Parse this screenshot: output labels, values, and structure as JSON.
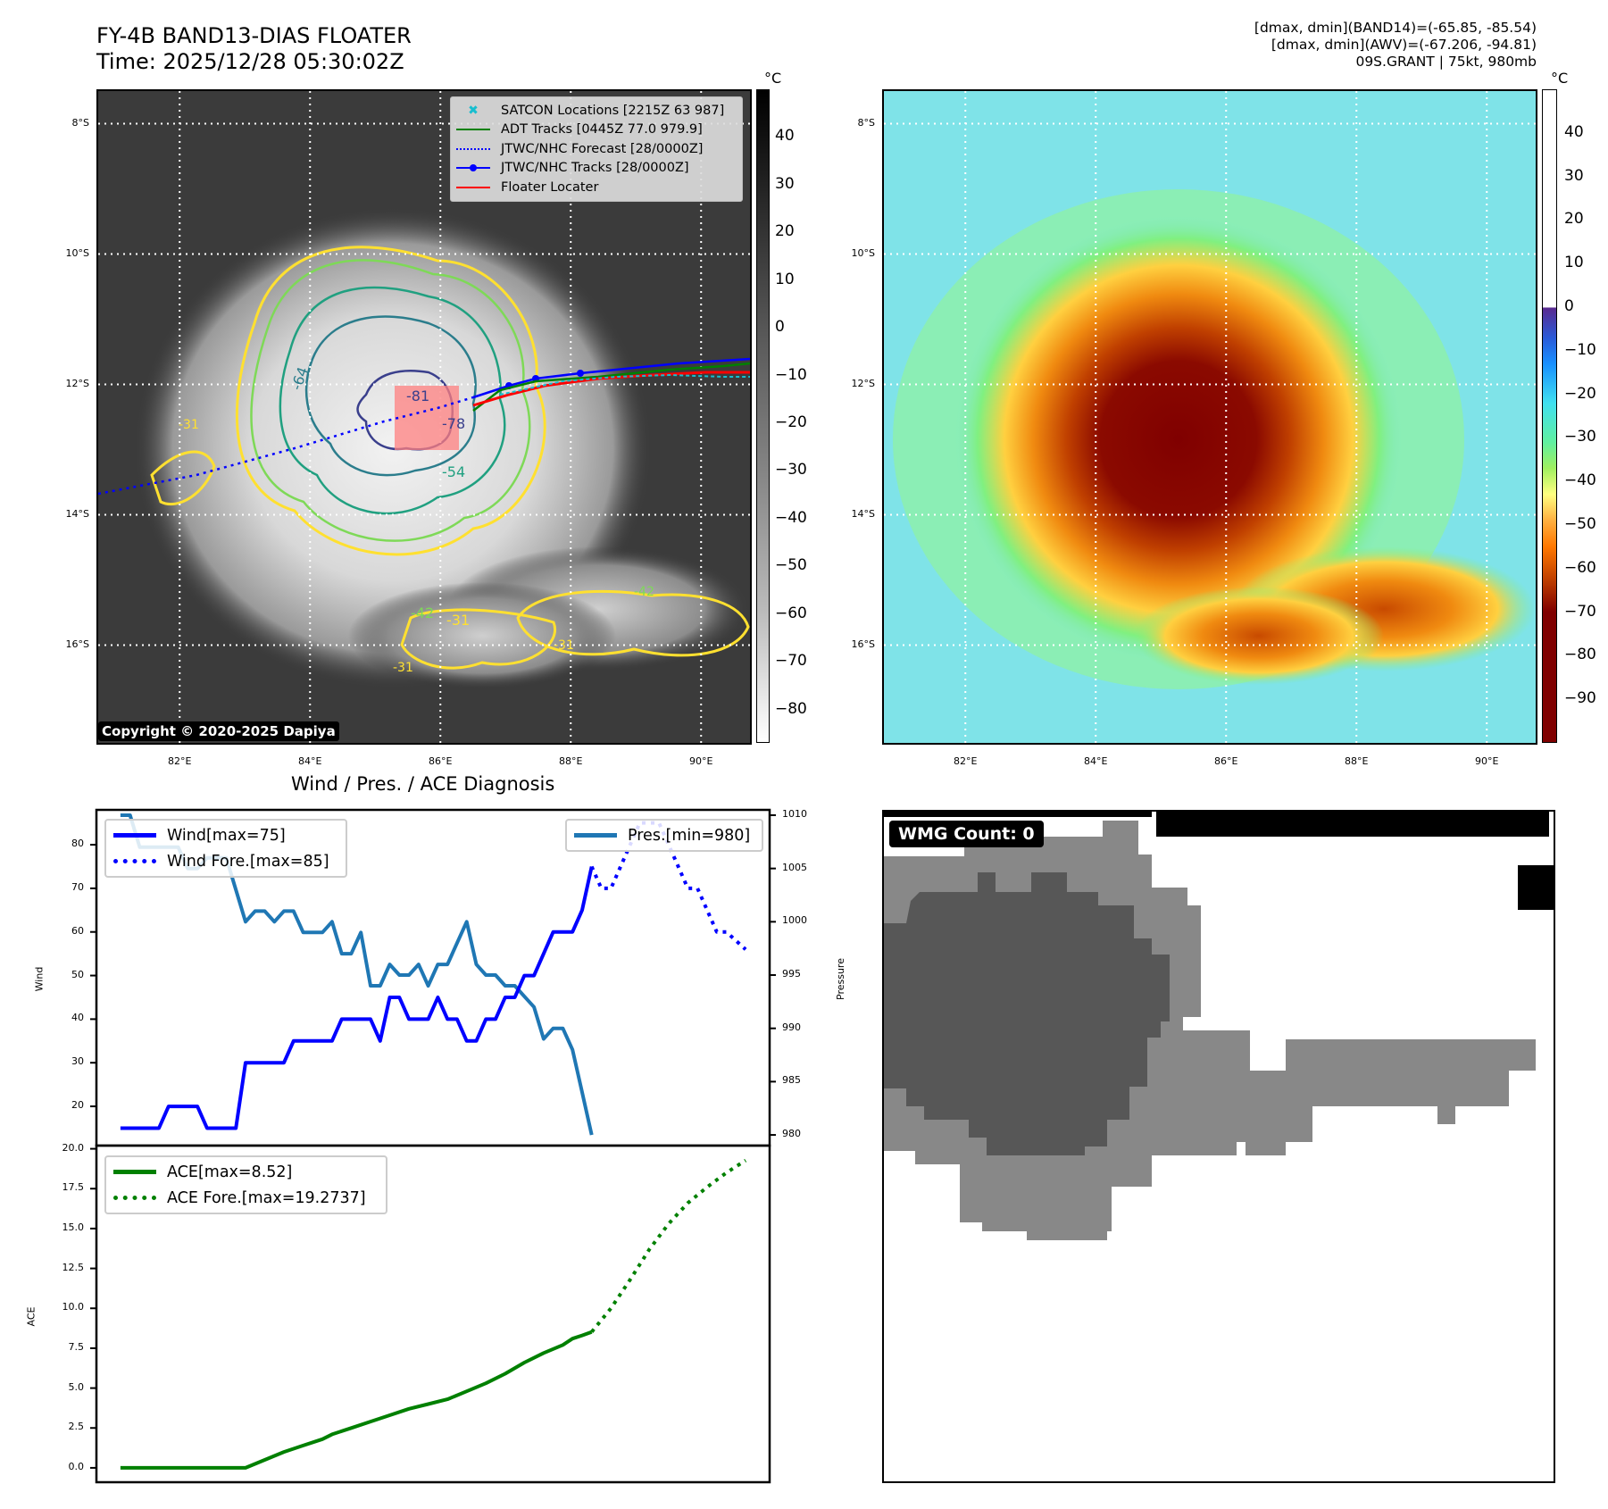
{
  "header": {
    "title_line1": "FY-4B BAND13-DIAS FLOATER",
    "title_line2": "Time: 2025/12/28 05:30:02Z",
    "info_line1": "[dmax, dmin](BAND14)=(-65.85, -85.54)",
    "info_line2": "[dmax, dmin](AWV)=(-67.206, -94.81)",
    "info_line3": "09S.GRANT | 75kt, 980mb"
  },
  "map_axes": {
    "lat_labels": [
      "8°S",
      "10°S",
      "12°S",
      "14°S",
      "16°S"
    ],
    "lon_labels": [
      "82°E",
      "84°E",
      "86°E",
      "88°E",
      "90°E"
    ],
    "lat_range": [
      -17.5,
      -7.5
    ],
    "lon_range": [
      80.75,
      90.75
    ]
  },
  "ir_map": {
    "colorbar_unit": "°C",
    "colorbar_ticks": [
      "40",
      "30",
      "20",
      "10",
      "0",
      "−10",
      "−20",
      "−30",
      "−40",
      "−50",
      "−60",
      "−70",
      "−80"
    ],
    "colorbar_range": [
      50,
      -87
    ],
    "copyright": "Copyright © 2020-2025 Dapiya",
    "contour_labels": [
      "-81",
      "-78",
      "-64",
      "-54",
      "-42",
      "-31",
      "-31",
      "-31",
      "-42",
      "-31"
    ],
    "legend": [
      {
        "label": "SATCON Locations [2215Z 63 987]",
        "color": "#17becf",
        "style": "x-marker"
      },
      {
        "label": "ADT Tracks [0445Z 77.0 979.9]",
        "color": "#008000",
        "style": "solid"
      },
      {
        "label": "JTWC/NHC Forecast [28/0000Z]",
        "color": "#0000ff",
        "style": "dotted"
      },
      {
        "label": "JTWC/NHC Tracks [28/0000Z]",
        "color": "#0000ff",
        "style": "solid-dot"
      },
      {
        "label": "Floater Locater",
        "color": "#ff0000",
        "style": "solid"
      }
    ]
  },
  "awv_map": {
    "colorbar_unit": "°C",
    "colorbar_ticks": [
      "40",
      "30",
      "20",
      "10",
      "0",
      "−10",
      "−20",
      "−30",
      "−40",
      "−50",
      "−60",
      "−70",
      "−80",
      "−90"
    ],
    "colorbar_range": [
      50,
      -100
    ]
  },
  "wmg": {
    "badge": "WMG Count: 0"
  },
  "colors": {
    "wind": "#0000ff",
    "pressure": "#1f77b4",
    "ace": "#008000",
    "floater": "#ff0000",
    "satcon": "#17becf"
  },
  "chart_data": [
    {
      "type": "line",
      "title": "Wind / Pres. / ACE Diagnosis",
      "ylabel": "Wind",
      "y2label": "Pressure",
      "ylim": [
        11,
        88
      ],
      "y2lim": [
        979,
        1010.5
      ],
      "yticks": [
        "80",
        "70",
        "60",
        "50",
        "40",
        "30",
        "20"
      ],
      "y2ticks": [
        "1010",
        "1005",
        "1000",
        "995",
        "990",
        "985",
        "980"
      ],
      "x": [
        0,
        1,
        2,
        3,
        4,
        5,
        6,
        7,
        8,
        9,
        10,
        11,
        12,
        13,
        14,
        15,
        16,
        17,
        18,
        19,
        20,
        21,
        22,
        23,
        24,
        25,
        26,
        27,
        28,
        29,
        30,
        31,
        32,
        33,
        34,
        35,
        36,
        37,
        38,
        39,
        40,
        41,
        42,
        43,
        44,
        45,
        46,
        47,
        48,
        49,
        50,
        51,
        52,
        53,
        54,
        55,
        56,
        57,
        58,
        59,
        60,
        61,
        62,
        63,
        64,
        65,
        66,
        67,
        68,
        69,
        70,
        71,
        72,
        73,
        74,
        75,
        76,
        77,
        78,
        79,
        80
      ],
      "series": [
        {
          "name": "Wind[max=75]",
          "axis": "left",
          "style": "solid",
          "x": [
            0,
            4,
            5,
            8,
            9,
            12,
            13,
            17,
            18,
            22,
            23,
            26,
            27,
            28,
            29,
            30,
            32,
            33,
            34,
            35,
            36,
            37,
            38,
            39,
            40,
            41,
            42,
            43,
            44,
            45,
            46,
            47,
            48,
            49
          ],
          "values": [
            15,
            15,
            20,
            20,
            15,
            15,
            30,
            30,
            35,
            35,
            40,
            40,
            35,
            45,
            45,
            40,
            40,
            45,
            40,
            40,
            35,
            35,
            40,
            40,
            45,
            45,
            50,
            50,
            55,
            60,
            60,
            60,
            65,
            75
          ]
        },
        {
          "name": "Wind Fore.[max=85]",
          "axis": "left",
          "style": "dotted",
          "x": [
            49,
            50,
            51,
            53,
            54,
            56,
            57,
            59,
            60,
            61,
            62,
            63,
            65
          ],
          "values": [
            75,
            70,
            70,
            80,
            85,
            85,
            80,
            70,
            70,
            65,
            60,
            60,
            56
          ]
        },
        {
          "name": "Pres.[min=980]",
          "axis": "right",
          "style": "solid",
          "x": [
            0,
            1,
            2,
            6,
            7,
            8,
            9,
            11,
            12,
            13,
            14,
            15,
            16,
            17,
            18,
            19,
            20,
            21,
            22,
            23,
            24,
            25,
            26,
            27,
            28,
            29,
            30,
            31,
            32,
            33,
            34,
            35,
            36,
            37,
            38,
            39,
            40,
            41,
            42,
            43,
            44,
            45,
            46,
            47,
            48,
            49
          ],
          "values": [
            1010,
            1010,
            1007,
            1007,
            1005,
            1005,
            1006,
            1006,
            1003,
            1000,
            1001,
            1001,
            1000,
            1001,
            1001,
            999,
            999,
            999,
            1000,
            997,
            997,
            999,
            994,
            994,
            996,
            995,
            995,
            996,
            994,
            996,
            996,
            998,
            1000,
            996,
            995,
            995,
            994,
            994,
            993,
            992,
            989,
            990,
            990,
            988,
            984,
            980
          ]
        }
      ]
    },
    {
      "type": "line",
      "ylabel": "ACE",
      "ylim": [
        -0.9,
        20.2
      ],
      "yticks": [
        "20.0",
        "17.5",
        "15.0",
        "12.5",
        "10.0",
        "7.5",
        "5.0",
        "2.5",
        "0.0"
      ],
      "series": [
        {
          "name": "ACE[max=8.52]",
          "style": "solid",
          "x": [
            0,
            13,
            15,
            17,
            19,
            21,
            22,
            24,
            26,
            28,
            30,
            32,
            34,
            36,
            38,
            40,
            42,
            44,
            46,
            47,
            48,
            49
          ],
          "values": [
            0,
            0,
            0.5,
            1.0,
            1.4,
            1.8,
            2.1,
            2.5,
            2.9,
            3.3,
            3.7,
            4.0,
            4.3,
            4.8,
            5.3,
            5.9,
            6.6,
            7.2,
            7.7,
            8.1,
            8.3,
            8.52
          ]
        },
        {
          "name": "ACE Fore.[max=19.2737]",
          "style": "dotted",
          "x": [
            49,
            51,
            53,
            55,
            57,
            59,
            61,
            63,
            65
          ],
          "values": [
            8.52,
            10.0,
            11.8,
            13.7,
            15.3,
            16.6,
            17.6,
            18.5,
            19.27
          ]
        }
      ]
    }
  ]
}
